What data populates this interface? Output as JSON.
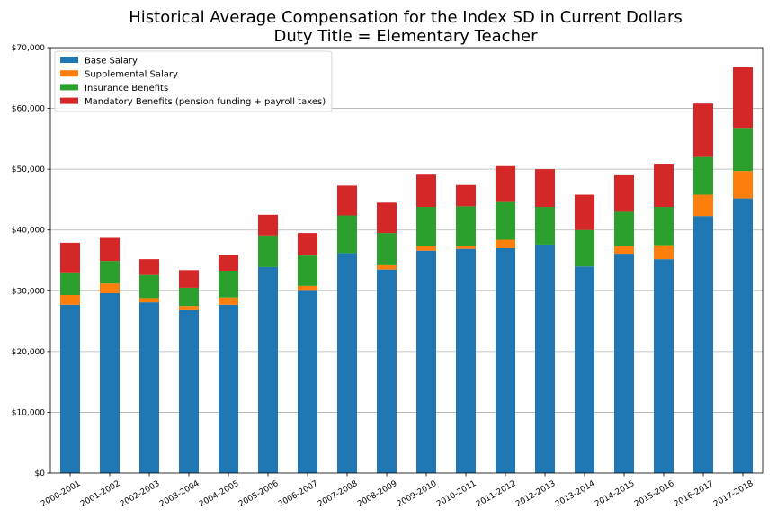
{
  "chart_data": {
    "type": "bar",
    "stacked": true,
    "title": "Historical Average Compensation for the Index SD in Current Dollars",
    "subtitle": "Duty Title = Elementary Teacher",
    "xlabel": "",
    "ylabel": "",
    "ylim": [
      0,
      70000
    ],
    "yticks": [
      "$0",
      "$10,000",
      "$20,000",
      "$30,000",
      "$40,000",
      "$50,000",
      "$60,000",
      "$70,000"
    ],
    "ytick_values": [
      0,
      10000,
      20000,
      30000,
      40000,
      50000,
      60000,
      70000
    ],
    "grid": "horizontal",
    "legend_position": "upper-left",
    "categories": [
      "2000-2001",
      "2001-2002",
      "2002-2003",
      "2003-2004",
      "2004-2005",
      "2005-2006",
      "2006-2007",
      "2007-2008",
      "2008-2009",
      "2009-2010",
      "2010-2011",
      "2011-2012",
      "2012-2013",
      "2013-2014",
      "2014-2015",
      "2015-2016",
      "2016-2017",
      "2017-2018"
    ],
    "series": [
      {
        "name": "Base Salary",
        "color": "#1f77b4",
        "values": [
          27700,
          29600,
          28100,
          26800,
          27700,
          33900,
          30000,
          36200,
          33500,
          36600,
          36900,
          37000,
          37600,
          34000,
          36100,
          35200,
          42300,
          45200
        ]
      },
      {
        "name": "Supplemental Salary",
        "color": "#ff7f0e",
        "values": [
          1600,
          1600,
          700,
          700,
          1200,
          0,
          800,
          0,
          700,
          800,
          400,
          1400,
          0,
          0,
          1200,
          2300,
          3500,
          4500
        ]
      },
      {
        "name": "Insurance Benefits",
        "color": "#2ca02c",
        "values": [
          3600,
          3700,
          3800,
          3000,
          4400,
          5200,
          5000,
          6200,
          5300,
          6400,
          6600,
          6200,
          6200,
          6000,
          5700,
          6300,
          6200,
          7100
        ]
      },
      {
        "name": "Mandatory Benefits (pension funding + payroll taxes)",
        "color": "#d62728",
        "values": [
          5000,
          3800,
          2600,
          2900,
          2600,
          3400,
          3700,
          4900,
          5000,
          5300,
          3500,
          5900,
          6200,
          5800,
          6000,
          7100,
          8800,
          10000
        ]
      }
    ]
  }
}
